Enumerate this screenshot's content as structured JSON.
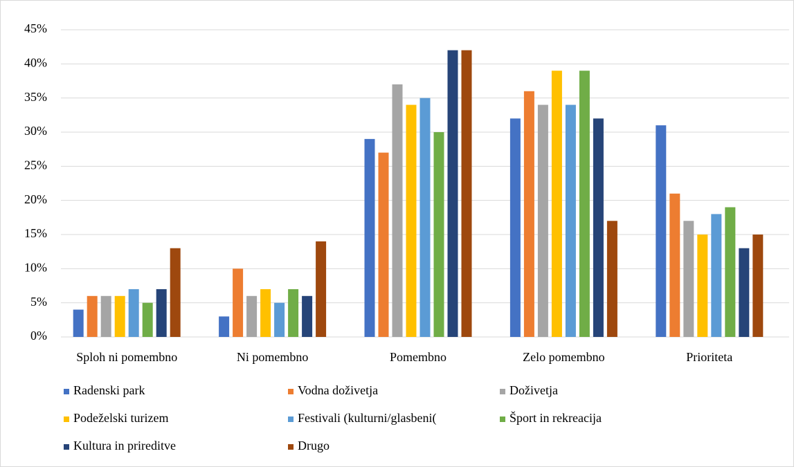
{
  "chart_data": {
    "type": "bar",
    "categories": [
      "Sploh ni pomembno",
      "Ni pomembno",
      "Pomembno",
      "Zelo pomembno",
      "Prioriteta"
    ],
    "series": [
      {
        "name": "Radenski park",
        "color": "#4472c4",
        "values": [
          4,
          3,
          29,
          32,
          31
        ]
      },
      {
        "name": "Vodna doživetja",
        "color": "#ed7d31",
        "values": [
          6,
          10,
          27,
          36,
          21
        ]
      },
      {
        "name": "Doživetja",
        "color": "#a5a5a5",
        "values": [
          6,
          6,
          37,
          34,
          17
        ]
      },
      {
        "name": "Podeželski turizem",
        "color": "#ffc000",
        "values": [
          6,
          7,
          34,
          39,
          15
        ]
      },
      {
        "name": "Festivali (kulturni/glasbeni(",
        "color": "#5b9bd5",
        "values": [
          7,
          5,
          35,
          34,
          18
        ]
      },
      {
        "name": "Šport in rekreacija",
        "color": "#70ad47",
        "values": [
          5,
          7,
          30,
          39,
          19
        ]
      },
      {
        "name": "Kultura in prireditve",
        "color": "#264478",
        "values": [
          7,
          6,
          42,
          32,
          13
        ]
      },
      {
        "name": "Drugo",
        "color": "#9e480e",
        "values": [
          13,
          14,
          42,
          17,
          15
        ]
      }
    ],
    "ylim": [
      0,
      45
    ],
    "yticks": [
      {
        "value": 0,
        "label": "0%"
      },
      {
        "value": 5,
        "label": "5%"
      },
      {
        "value": 10,
        "label": "10%"
      },
      {
        "value": 15,
        "label": "15%"
      },
      {
        "value": 20,
        "label": "20%"
      },
      {
        "value": 25,
        "label": "25%"
      },
      {
        "value": 30,
        "label": "30%"
      },
      {
        "value": 35,
        "label": "35%"
      },
      {
        "value": 40,
        "label": "40%"
      },
      {
        "value": 45,
        "label": "45%"
      }
    ],
    "grid": true,
    "legend": "bottom"
  }
}
